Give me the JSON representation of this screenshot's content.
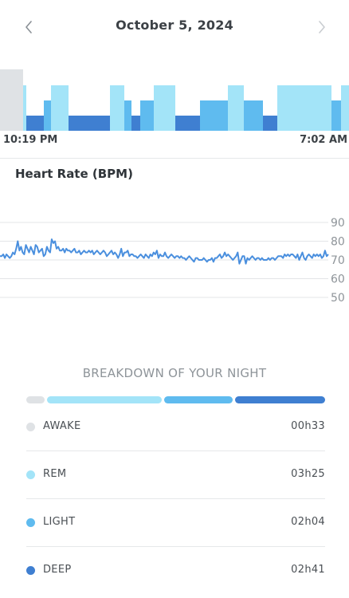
{
  "header": {
    "date": "October 5, 2024",
    "prev_icon": "chevron-left-icon",
    "next_icon": "chevron-right-icon"
  },
  "hypnogram": {
    "start_time": "10:19 PM",
    "end_time": "7:02 AM"
  },
  "heart_rate": {
    "title": "Heart Rate (BPM)"
  },
  "chart_data": {
    "type": "line",
    "title": "Heart Rate (BPM)",
    "ylim": [
      50,
      90
    ],
    "y_ticks": [
      90,
      80,
      70,
      60,
      50
    ],
    "tick_labels": [
      "90",
      "80",
      "70",
      "60",
      "50"
    ],
    "series": [
      {
        "name": "",
        "values": [
          72,
          72,
          73,
          71,
          73,
          72,
          71,
          72,
          74,
          73,
          76,
          80,
          75,
          77,
          74,
          73,
          78,
          76,
          74,
          77,
          75,
          73,
          78,
          77,
          74,
          75,
          76,
          72,
          73,
          77,
          75,
          74,
          81,
          79,
          80,
          76,
          77,
          75,
          75,
          76,
          74,
          76,
          75,
          75,
          74,
          75,
          76,
          74,
          74,
          75,
          73,
          74,
          75,
          74,
          74,
          75,
          74,
          75,
          73,
          74,
          75,
          74,
          73,
          74,
          75,
          74,
          72,
          73,
          74,
          75,
          73,
          74,
          73,
          71,
          73,
          76,
          72,
          74,
          74,
          75,
          72,
          73,
          73,
          72,
          72,
          71,
          72,
          73,
          72,
          71,
          73,
          72,
          71,
          73,
          72,
          74,
          73,
          75,
          71,
          73,
          72,
          72,
          74,
          72,
          71,
          72,
          73,
          72,
          71,
          72,
          72,
          71,
          72,
          71,
          71,
          70,
          71,
          72,
          71,
          70,
          69,
          71,
          71,
          70,
          70,
          70,
          71,
          70,
          69,
          70,
          70,
          71,
          69,
          71,
          71,
          72,
          73,
          71,
          72,
          74,
          72,
          73,
          72,
          71,
          70,
          71,
          72,
          74,
          68,
          70,
          72,
          72,
          68,
          71,
          70,
          71,
          72,
          71,
          70,
          71,
          71,
          70,
          71,
          70,
          70,
          70,
          71,
          70,
          71,
          71,
          70,
          71,
          72,
          72,
          72,
          71,
          73,
          72,
          73,
          72,
          73,
          73,
          72,
          71,
          73,
          70,
          72,
          74,
          71,
          70,
          72,
          73,
          72,
          71,
          73,
          72,
          73,
          72,
          73,
          71,
          72,
          75,
          72,
          73
        ]
      }
    ]
  },
  "breakdown": {
    "title": "BREAKDOWN OF YOUR NIGHT",
    "stages": [
      {
        "name": "AWAKE",
        "duration": "00h33",
        "minutes": 33,
        "color": "#dfe2e5"
      },
      {
        "name": "REM",
        "duration": "03h25",
        "minutes": 205,
        "color": "#a3e4f8"
      },
      {
        "name": "LIGHT",
        "duration": "02h04",
        "minutes": 124,
        "color": "#5fbbef"
      },
      {
        "name": "DEEP",
        "duration": "02h41",
        "minutes": 161,
        "color": "#3f7fd1"
      }
    ]
  },
  "colors": {
    "awake": "#dfe2e5",
    "rem": "#a3e4f8",
    "light": "#5fbbef",
    "deep": "#3f7fd1",
    "hr_line": "#4a8fde",
    "grid": "#e3e5e7"
  }
}
